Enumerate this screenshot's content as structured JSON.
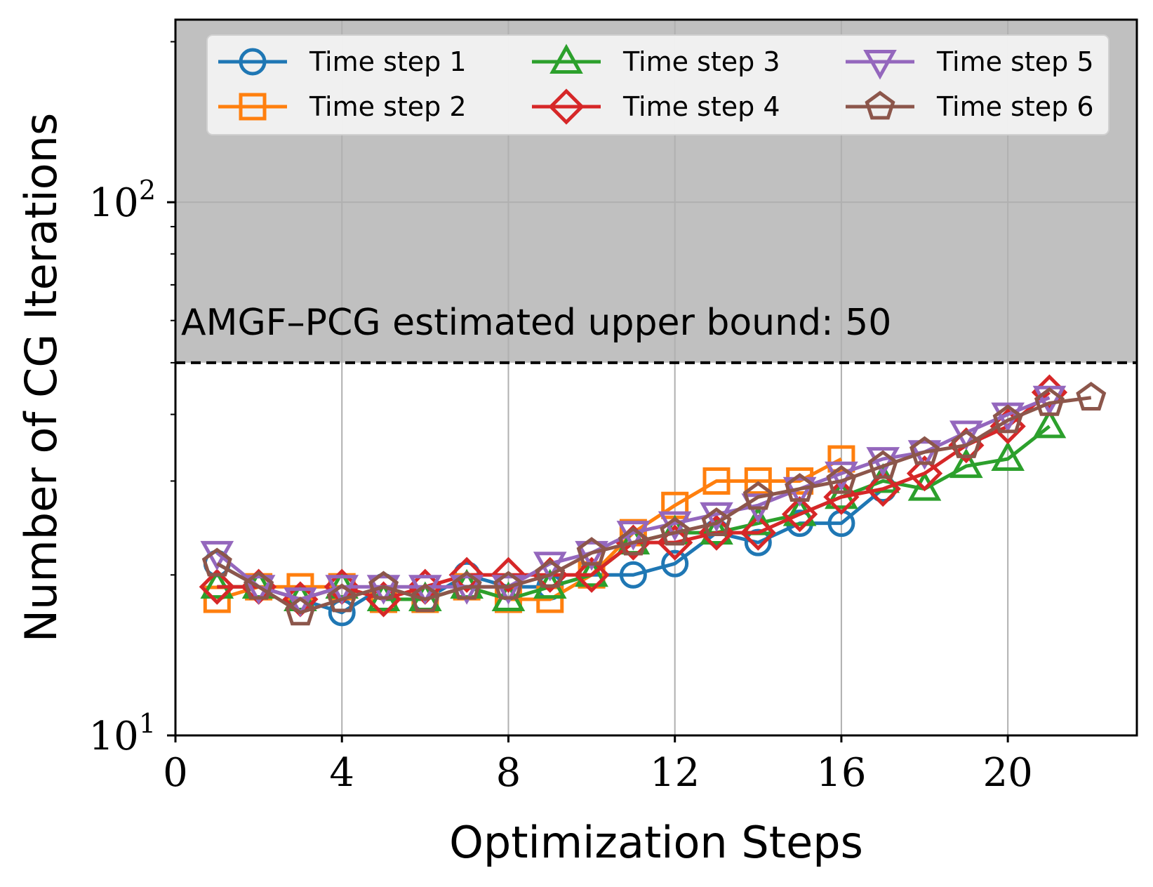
{
  "chart_data": {
    "type": "line",
    "title": "",
    "xlabel": "Optimization Steps",
    "ylabel": "Number of CG Iterations",
    "yscale": "log",
    "xlim": [
      0,
      23.1
    ],
    "ylim": [
      10,
      220
    ],
    "xticks": [
      0,
      4,
      8,
      12,
      16,
      20
    ],
    "xtick_labels": [
      "0",
      "4",
      "8",
      "12",
      "16",
      "20"
    ],
    "yticks": [
      10,
      100
    ],
    "ytick_labels": [
      {
        "base": "10",
        "exp": "1",
        "value": 10
      },
      {
        "base": "10",
        "exp": "2",
        "value": 100
      }
    ],
    "grid": true,
    "legend_position": "top",
    "annotation": {
      "text": "AMGF–PCG estimated upper bound: 50",
      "threshold": 50,
      "shaded_region": "above threshold"
    },
    "series": [
      {
        "name": "Time step 1",
        "color": "#1f77b4",
        "marker": "circle",
        "x": [
          1,
          2,
          3,
          4,
          5,
          6,
          7,
          8,
          9,
          10,
          11,
          12,
          13,
          14,
          15,
          16,
          17
        ],
        "values": [
          21,
          19,
          18,
          17,
          19,
          18,
          20,
          19,
          19,
          20,
          20,
          21,
          24,
          23,
          25,
          25,
          29
        ]
      },
      {
        "name": "Time step 2",
        "color": "#ff7f0e",
        "marker": "square",
        "x": [
          1,
          2,
          3,
          4,
          5,
          6,
          7,
          8,
          9,
          10,
          11,
          12,
          13,
          14,
          15,
          16
        ],
        "values": [
          18,
          19,
          19,
          19,
          18,
          18,
          19,
          18,
          18,
          20,
          24,
          27,
          30,
          30,
          30,
          33
        ]
      },
      {
        "name": "Time step 3",
        "color": "#2ca02c",
        "marker": "triangle-up",
        "x": [
          1,
          2,
          3,
          4,
          5,
          6,
          7,
          8,
          9,
          10,
          11,
          12,
          13,
          14,
          15,
          16,
          17,
          18,
          19,
          20,
          21
        ],
        "values": [
          19,
          19,
          18,
          19,
          18,
          18,
          19,
          18,
          19,
          20,
          23,
          24,
          24,
          25,
          26,
          28,
          30,
          29,
          32,
          33,
          38
        ]
      },
      {
        "name": "Time step 4",
        "color": "#d62728",
        "marker": "diamond",
        "x": [
          1,
          2,
          3,
          4,
          5,
          6,
          7,
          8,
          9,
          10,
          11,
          12,
          13,
          14,
          15,
          16,
          17,
          18,
          19,
          20,
          21
        ],
        "values": [
          19,
          19,
          18,
          19,
          18,
          19,
          20,
          20,
          20,
          20,
          23,
          23,
          24,
          24,
          26,
          28,
          29,
          31,
          35,
          38,
          44
        ]
      },
      {
        "name": "Time step 5",
        "color": "#9467bd",
        "marker": "triangle-down",
        "x": [
          1,
          2,
          3,
          4,
          5,
          6,
          7,
          8,
          9,
          10,
          11,
          12,
          13,
          14,
          15,
          16,
          17,
          18,
          19,
          20,
          21
        ],
        "values": [
          22,
          19,
          18,
          19,
          19,
          19,
          19,
          19,
          21,
          22,
          24,
          25,
          26,
          27,
          29,
          31,
          33,
          34,
          37,
          40,
          43
        ]
      },
      {
        "name": "Time step 6",
        "color": "#8c564b",
        "marker": "pentagon",
        "x": [
          1,
          2,
          3,
          4,
          5,
          6,
          7,
          8,
          9,
          10,
          11,
          12,
          13,
          14,
          15,
          16,
          17,
          18,
          19,
          20,
          21,
          22
        ],
        "values": [
          21,
          19,
          17,
          18,
          19,
          18,
          19,
          19,
          20,
          22,
          23,
          24,
          25,
          28,
          29,
          30,
          32,
          34,
          35,
          39,
          42,
          43
        ]
      }
    ]
  }
}
